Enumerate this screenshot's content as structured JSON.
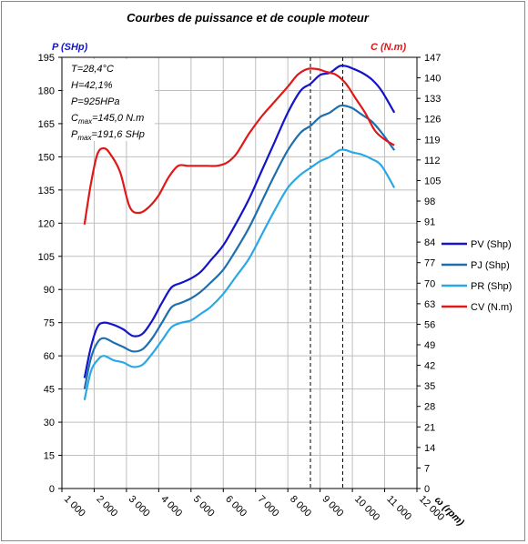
{
  "chart_data": {
    "type": "line",
    "title": "Courbes de puissance et de couple moteur",
    "xlabel": "ω (rpm)",
    "ylabel_left": "P (SHp)",
    "ylabel_right": "C (N.m)",
    "xlim": [
      1000,
      12000
    ],
    "ylim_left": [
      0,
      195
    ],
    "ylim_right": [
      0,
      147
    ],
    "x_ticks": [
      "1 000",
      "2 000",
      "3 000",
      "4 000",
      "5 000",
      "6 000",
      "7 000",
      "8 000",
      "9 000",
      "10 000",
      "11 000",
      "12 000"
    ],
    "y_left_ticks": [
      "0",
      "15",
      "30",
      "45",
      "60",
      "75",
      "90",
      "105",
      "120",
      "135",
      "150",
      "165",
      "180",
      "195"
    ],
    "y_right_ticks": [
      "0",
      "7",
      "14",
      "21",
      "28",
      "35",
      "42",
      "49",
      "56",
      "63",
      "70",
      "77",
      "84",
      "91",
      "98",
      "105",
      "112",
      "119",
      "126",
      "133",
      "140",
      "147"
    ],
    "grid": true,
    "legend_position": "right",
    "annotations": [
      {
        "main": "T=28,4°C",
        "sub": "",
        "rest": ""
      },
      {
        "main": "H=42,1%",
        "sub": "",
        "rest": ""
      },
      {
        "main": "P=925HPa",
        "sub": "",
        "rest": ""
      },
      {
        "main": "C",
        "sub": "max",
        "rest": "=145,0 N.m"
      },
      {
        "main": "P",
        "sub": "max",
        "rest": "=191,6 SHp"
      }
    ],
    "vlines": [
      8700,
      9700
    ],
    "series": [
      {
        "name": "PV (Shp)",
        "axis": "left",
        "color": "#1414c8",
        "x": [
          1700,
          1900,
          2100,
          2300,
          2600,
          2900,
          3200,
          3500,
          3800,
          4100,
          4400,
          4700,
          5000,
          5300,
          5600,
          6000,
          6400,
          6800,
          7200,
          7600,
          8000,
          8400,
          8700,
          9000,
          9300,
          9600,
          9800,
          10000,
          10300,
          10600,
          10900,
          11300
        ],
        "y": [
          50,
          64,
          73,
          75,
          74,
          72,
          69,
          70,
          76,
          84,
          91,
          93,
          95,
          98,
          103,
          110,
          120,
          131,
          144,
          157,
          170,
          180,
          183,
          187,
          188,
          191,
          191,
          190,
          188,
          185,
          180,
          170
        ]
      },
      {
        "name": "PJ (Shp)",
        "axis": "left",
        "color": "#1f6fad",
        "x": [
          1700,
          1900,
          2100,
          2300,
          2600,
          2900,
          3200,
          3500,
          3800,
          4100,
          4400,
          4700,
          5000,
          5300,
          5600,
          6000,
          6400,
          6800,
          7200,
          7600,
          8000,
          8400,
          8700,
          9000,
          9300,
          9600,
          9800,
          10000,
          10300,
          10600,
          10900,
          11300
        ],
        "y": [
          45,
          59,
          66,
          68,
          66,
          64,
          62,
          63,
          68,
          75,
          82,
          84,
          86,
          89,
          93,
          99,
          108,
          118,
          130,
          142,
          153,
          161,
          164,
          168,
          170,
          173,
          173,
          172,
          169,
          166,
          161,
          153
        ]
      },
      {
        "name": "PR (Shp)",
        "axis": "left",
        "color": "#2aa8e6",
        "x": [
          1700,
          1900,
          2100,
          2300,
          2600,
          2900,
          3200,
          3500,
          3800,
          4100,
          4400,
          4700,
          5000,
          5300,
          5600,
          6000,
          6400,
          6800,
          7200,
          7600,
          8000,
          8400,
          8700,
          9000,
          9300,
          9600,
          9800,
          10000,
          10300,
          10600,
          10900,
          11300
        ],
        "y": [
          40,
          53,
          58,
          60,
          58,
          57,
          55,
          56,
          61,
          67,
          73,
          75,
          76,
          79,
          82,
          88,
          96,
          104,
          115,
          126,
          136,
          142,
          145,
          148,
          150,
          153,
          153,
          152,
          151,
          149,
          146,
          136
        ]
      },
      {
        "name": "CV (N.m)",
        "axis": "right",
        "color": "#e01818",
        "x": [
          1700,
          1900,
          2100,
          2300,
          2500,
          2800,
          3100,
          3400,
          3700,
          4000,
          4300,
          4600,
          4900,
          5200,
          5500,
          5800,
          6100,
          6400,
          6800,
          7200,
          7600,
          8000,
          8300,
          8600,
          8900,
          9200,
          9500,
          9800,
          10100,
          10400,
          10700,
          11000,
          11300
        ],
        "y": [
          90,
          104,
          114,
          116,
          114,
          108,
          96,
          94,
          96,
          100,
          106,
          110,
          110,
          110,
          110,
          110,
          111,
          114,
          121,
          127,
          132,
          137,
          141,
          143,
          143,
          142,
          141,
          138,
          133,
          128,
          122,
          119,
          117
        ]
      }
    ]
  }
}
